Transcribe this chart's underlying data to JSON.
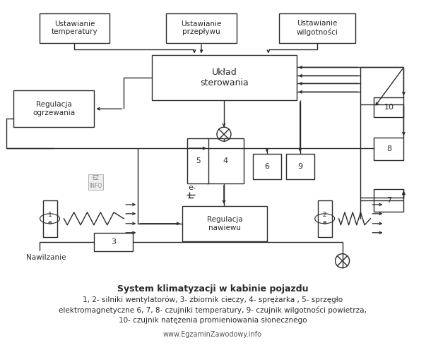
{
  "bg_color": "#ffffff",
  "line_color": "#2a2a2a",
  "box_fill": "#ffffff",
  "title_line1": "System klimatyzacji w kabinie pojazdu",
  "title_line2": "1, 2- silniki wentylatorów, 3- zbiornik cieczy, 4- sprężarka , 5- sprzęgło",
  "title_line3": "elektromagnetyczne 6, 7, 8- czujniki temperatury, 9- czujnik wilgotności powietrza,",
  "title_line4": "10- czujnik natężenia promieniowania słonecznego",
  "footer": "www.EgzaminZawodowy.info"
}
